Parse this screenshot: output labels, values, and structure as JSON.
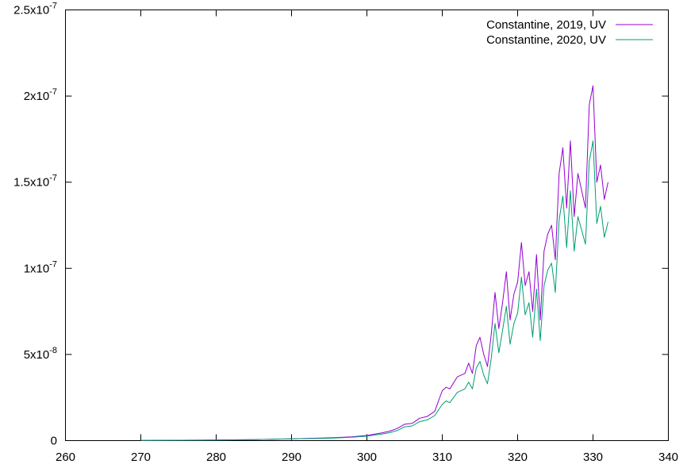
{
  "chart_data": {
    "type": "line",
    "title": "",
    "xlabel": "",
    "ylabel": "",
    "xlim": [
      260,
      340
    ],
    "ylim": [
      0,
      2.5e-07
    ],
    "grid": false,
    "legend_position": "top-right",
    "x_ticks": [
      {
        "value": 260,
        "label": "260"
      },
      {
        "value": 270,
        "label": "270"
      },
      {
        "value": 280,
        "label": "280"
      },
      {
        "value": 290,
        "label": "290"
      },
      {
        "value": 300,
        "label": "300"
      },
      {
        "value": 310,
        "label": "310"
      },
      {
        "value": 320,
        "label": "320"
      },
      {
        "value": 330,
        "label": "330"
      },
      {
        "value": 340,
        "label": "340"
      }
    ],
    "y_ticks": [
      {
        "value": 0,
        "label": "0"
      },
      {
        "value": 5e-08,
        "label": "5x10",
        "exp": "-8"
      },
      {
        "value": 1e-07,
        "label": "1x10",
        "exp": "-7"
      },
      {
        "value": 1.5e-07,
        "label": "1.5x10",
        "exp": "-7"
      },
      {
        "value": 2e-07,
        "label": "2x10",
        "exp": "-7"
      },
      {
        "value": 2.5e-07,
        "label": "2.5x10",
        "exp": "-7"
      }
    ],
    "series": [
      {
        "name": "Constantine, 2019, UV",
        "color": "#9400d3",
        "x": [
          270,
          280,
          285,
          290,
          295,
          298,
          300,
          302,
          303,
          304,
          305,
          306,
          307,
          308,
          309,
          310,
          310.5,
          311,
          312,
          313,
          313.5,
          314,
          314.5,
          315,
          315.5,
          316,
          316.5,
          317,
          317.5,
          318,
          318.5,
          319,
          319.5,
          320,
          320.5,
          321,
          321.5,
          322,
          322.5,
          323,
          323.5,
          324,
          324.5,
          325,
          325.5,
          326,
          326.5,
          327,
          327.5,
          328,
          328.5,
          329,
          329.5,
          330,
          330.5,
          331,
          331.5,
          332
        ],
        "y": [
          1e-10,
          3e-10,
          6e-10,
          1e-09,
          1.6e-09,
          2.2e-09,
          3e-09,
          4.5e-09,
          5.5e-09,
          7e-09,
          9.5e-09,
          1e-08,
          1.3e-08,
          1.4e-08,
          1.7e-08,
          2.9e-08,
          3.1e-08,
          3e-08,
          3.7e-08,
          3.9e-08,
          4.5e-08,
          3.9e-08,
          5.5e-08,
          6e-08,
          5e-08,
          4.3e-08,
          6.2e-08,
          8.6e-08,
          6.5e-08,
          8e-08,
          9.8e-08,
          7e-08,
          8.5e-08,
          9.2e-08,
          1.15e-07,
          9e-08,
          9.8e-08,
          7.5e-08,
          1.08e-07,
          7e-08,
          1.1e-07,
          1.2e-07,
          1.25e-07,
          1.05e-07,
          1.55e-07,
          1.7e-07,
          1.35e-07,
          1.74e-07,
          1.3e-07,
          1.55e-07,
          1.45e-07,
          1.35e-07,
          1.95e-07,
          2.06e-07,
          1.5e-07,
          1.6e-07,
          1.4e-07,
          1.5e-07
        ]
      },
      {
        "name": "Constantine, 2020, UV",
        "color": "#009e73",
        "x": [
          270,
          280,
          285,
          290,
          295,
          298,
          300,
          302,
          303,
          304,
          305,
          306,
          307,
          308,
          309,
          310,
          310.5,
          311,
          312,
          313,
          313.5,
          314,
          314.5,
          315,
          315.5,
          316,
          316.5,
          317,
          317.5,
          318,
          318.5,
          319,
          319.5,
          320,
          320.5,
          321,
          321.5,
          322,
          322.5,
          323,
          323.5,
          324,
          324.5,
          325,
          325.5,
          326,
          326.5,
          327,
          327.5,
          328,
          328.5,
          329,
          329.5,
          330,
          330.5,
          331,
          331.5,
          332
        ],
        "y": [
          1e-10,
          3e-10,
          6e-10,
          1e-09,
          1.4e-09,
          2e-09,
          2.6e-09,
          3.8e-09,
          4.6e-09,
          5.8e-09,
          8e-09,
          8.5e-09,
          1.1e-08,
          1.2e-08,
          1.45e-08,
          2.1e-08,
          2.3e-08,
          2.2e-08,
          2.8e-08,
          3e-08,
          3.4e-08,
          3e-08,
          4.2e-08,
          4.6e-08,
          3.8e-08,
          3.3e-08,
          4.8e-08,
          6.8e-08,
          5.1e-08,
          6.4e-08,
          7.8e-08,
          5.6e-08,
          6.8e-08,
          7.4e-08,
          9.5e-08,
          7.3e-08,
          8e-08,
          6e-08,
          8.8e-08,
          5.8e-08,
          9e-08,
          9.9e-08,
          1.03e-07,
          8.6e-08,
          1.28e-07,
          1.42e-07,
          1.12e-07,
          1.45e-07,
          1.1e-07,
          1.3e-07,
          1.22e-07,
          1.14e-07,
          1.62e-07,
          1.74e-07,
          1.26e-07,
          1.36e-07,
          1.18e-07,
          1.27e-07
        ]
      }
    ]
  }
}
